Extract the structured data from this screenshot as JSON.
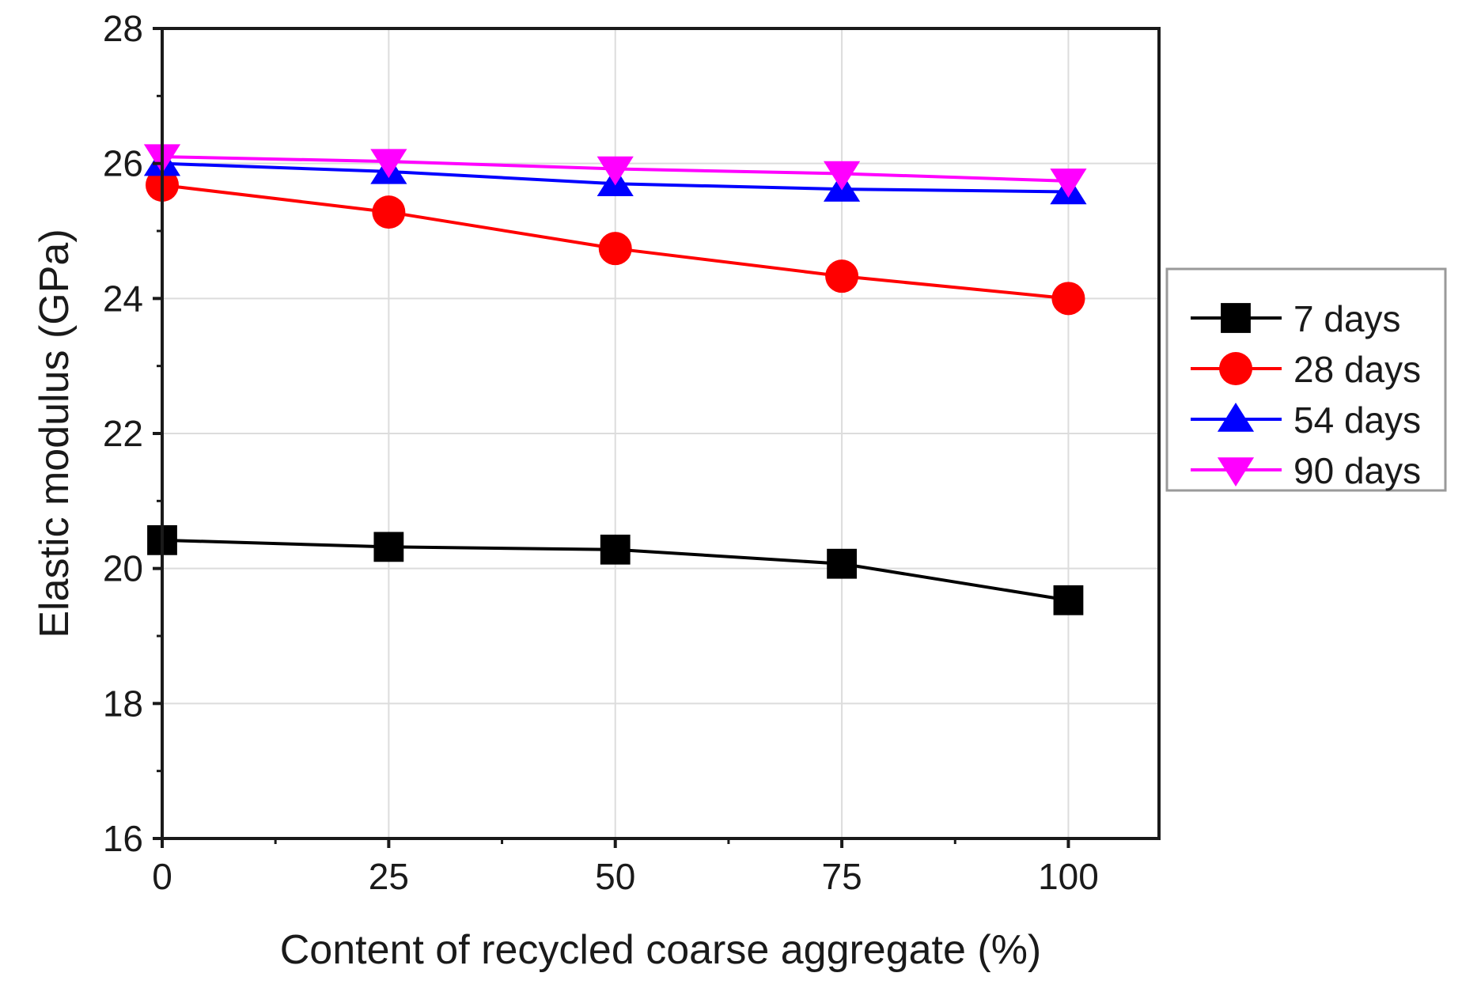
{
  "chart_data": {
    "type": "line",
    "title": "",
    "xlabel": "Content of recycled coarse aggregate (%)",
    "ylabel": "Elastic modulus (GPa)",
    "x": [
      0,
      25,
      50,
      75,
      100
    ],
    "xlim": [
      0,
      110
    ],
    "ylim": [
      16,
      28
    ],
    "xticks": [
      "0",
      "25",
      "50",
      "75",
      "100"
    ],
    "yticks": [
      "16",
      "18",
      "20",
      "22",
      "24",
      "26",
      "28"
    ],
    "grid": true,
    "legend_position": "right",
    "series": [
      {
        "name": "7 days",
        "color": "#000000",
        "marker": "square",
        "values": [
          20.42,
          20.32,
          20.28,
          20.07,
          19.53
        ]
      },
      {
        "name": "28 days",
        "color": "#ff0000",
        "marker": "circle",
        "values": [
          25.68,
          25.28,
          24.74,
          24.33,
          24.0
        ]
      },
      {
        "name": "54 days",
        "color": "#0000ff",
        "marker": "triangle-up",
        "values": [
          26.0,
          25.88,
          25.7,
          25.62,
          25.58
        ]
      },
      {
        "name": "90 days",
        "color": "#ff00ff",
        "marker": "triangle-down",
        "values": [
          26.1,
          26.03,
          25.92,
          25.85,
          25.74
        ]
      }
    ]
  }
}
